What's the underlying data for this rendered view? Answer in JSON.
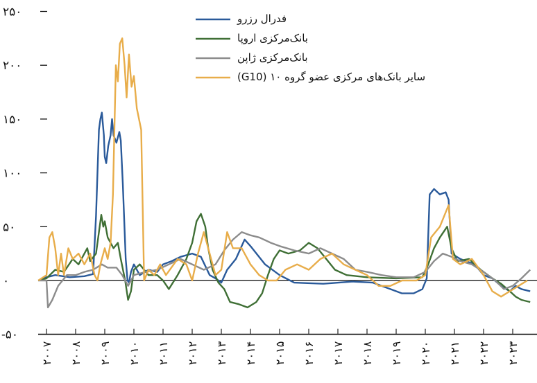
{
  "chart_data": {
    "type": "line",
    "title": "",
    "xlabel": "",
    "ylabel": "",
    "ylim": [
      -50,
      250
    ],
    "xlim": [
      2006.72,
      2023.9
    ],
    "yticks": [
      {
        "value": 250,
        "label": "۲۵۰"
      },
      {
        "value": 200,
        "label": "۲۰۰"
      },
      {
        "value": 150,
        "label": "۱۵۰"
      },
      {
        "value": 100,
        "label": "۱۰۰"
      },
      {
        "value": 50,
        "label": "۵۰"
      },
      {
        "value": 0,
        "label": "۰"
      },
      {
        "value": -50,
        "label": "-۵۰"
      }
    ],
    "xticks": [
      {
        "value": 2007,
        "label": "۲۰۰۷"
      },
      {
        "value": 2008,
        "label": "۲۰۰۸"
      },
      {
        "value": 2009,
        "label": "۲۰۰۹"
      },
      {
        "value": 2010,
        "label": "۲۰۱۰"
      },
      {
        "value": 2011,
        "label": "۲۰۱۱"
      },
      {
        "value": 2012,
        "label": "۲۰۱۲"
      },
      {
        "value": 2013,
        "label": "۲۰۱۳"
      },
      {
        "value": 2014,
        "label": "۲۰۱۴"
      },
      {
        "value": 2015,
        "label": "۲۰۱۵"
      },
      {
        "value": 2016,
        "label": "۲۰۱۶"
      },
      {
        "value": 2017,
        "label": "۲۰۱۷"
      },
      {
        "value": 2018,
        "label": "۲۰۱۸"
      },
      {
        "value": 2019,
        "label": "۲۰۱۹"
      },
      {
        "value": 2020,
        "label": "۲۰۲۰"
      },
      {
        "value": 2021,
        "label": "۲۰۲۱"
      },
      {
        "value": 2022,
        "label": "۲۰۲۲"
      },
      {
        "value": 2023,
        "label": "۲۰۲۳"
      }
    ],
    "grid": false,
    "legend_position": "top-center",
    "series": [
      {
        "name": "فدرال رزرو",
        "color": "#2a5a9a",
        "points": [
          [
            2006.72,
            0
          ],
          [
            2007.0,
            3
          ],
          [
            2007.3,
            5
          ],
          [
            2007.8,
            3
          ],
          [
            2008.3,
            4
          ],
          [
            2008.6,
            6
          ],
          [
            2008.7,
            60
          ],
          [
            2008.8,
            140
          ],
          [
            2008.85,
            150
          ],
          [
            2008.9,
            156
          ],
          [
            2008.97,
            135
          ],
          [
            2009.0,
            115
          ],
          [
            2009.05,
            109
          ],
          [
            2009.12,
            125
          ],
          [
            2009.2,
            135
          ],
          [
            2009.25,
            150
          ],
          [
            2009.3,
            135
          ],
          [
            2009.4,
            128
          ],
          [
            2009.5,
            138
          ],
          [
            2009.55,
            130
          ],
          [
            2009.62,
            90
          ],
          [
            2009.72,
            20
          ],
          [
            2009.78,
            0
          ],
          [
            2009.83,
            -2
          ],
          [
            2009.9,
            8
          ],
          [
            2010.0,
            15
          ],
          [
            2010.2,
            5
          ],
          [
            2010.5,
            10
          ],
          [
            2010.8,
            8
          ],
          [
            2011.0,
            15
          ],
          [
            2011.3,
            18
          ],
          [
            2011.6,
            22
          ],
          [
            2012.0,
            25
          ],
          [
            2012.3,
            22
          ],
          [
            2012.6,
            5
          ],
          [
            2012.8,
            2
          ],
          [
            2013.0,
            -2
          ],
          [
            2013.2,
            10
          ],
          [
            2013.5,
            20
          ],
          [
            2013.8,
            38
          ],
          [
            2014.0,
            32
          ],
          [
            2014.5,
            15
          ],
          [
            2015.0,
            5
          ],
          [
            2015.5,
            -2
          ],
          [
            2016.5,
            -3
          ],
          [
            2017.5,
            -1
          ],
          [
            2018.2,
            -2
          ],
          [
            2018.8,
            -8
          ],
          [
            2019.2,
            -12
          ],
          [
            2019.6,
            -12
          ],
          [
            2019.9,
            -8
          ],
          [
            2020.05,
            2
          ],
          [
            2020.15,
            80
          ],
          [
            2020.3,
            85
          ],
          [
            2020.5,
            80
          ],
          [
            2020.7,
            82
          ],
          [
            2020.8,
            75
          ],
          [
            2020.9,
            25
          ],
          [
            2021.2,
            20
          ],
          [
            2021.7,
            15
          ],
          [
            2022.0,
            5
          ],
          [
            2022.3,
            2
          ],
          [
            2022.6,
            -5
          ],
          [
            2022.9,
            -10
          ],
          [
            2023.1,
            -5
          ],
          [
            2023.3,
            -8
          ],
          [
            2023.6,
            -10
          ]
        ]
      },
      {
        "name": "بانک‌مرکزی اروپا",
        "color": "#3f6f35",
        "points": [
          [
            2006.72,
            0
          ],
          [
            2007.0,
            2
          ],
          [
            2007.3,
            10
          ],
          [
            2007.6,
            8
          ],
          [
            2007.9,
            20
          ],
          [
            2008.1,
            15
          ],
          [
            2008.4,
            30
          ],
          [
            2008.5,
            18
          ],
          [
            2008.7,
            25
          ],
          [
            2008.8,
            45
          ],
          [
            2008.88,
            61
          ],
          [
            2008.95,
            50
          ],
          [
            2009.0,
            55
          ],
          [
            2009.1,
            40
          ],
          [
            2009.3,
            30
          ],
          [
            2009.45,
            35
          ],
          [
            2009.55,
            20
          ],
          [
            2009.7,
            0
          ],
          [
            2009.8,
            -18
          ],
          [
            2009.9,
            -10
          ],
          [
            2010.0,
            10
          ],
          [
            2010.2,
            15
          ],
          [
            2010.5,
            5
          ],
          [
            2010.8,
            5
          ],
          [
            2011.0,
            0
          ],
          [
            2011.2,
            -8
          ],
          [
            2011.5,
            5
          ],
          [
            2011.8,
            20
          ],
          [
            2012.0,
            35
          ],
          [
            2012.15,
            55
          ],
          [
            2012.3,
            62
          ],
          [
            2012.45,
            50
          ],
          [
            2012.55,
            30
          ],
          [
            2012.7,
            10
          ],
          [
            2012.9,
            -2
          ],
          [
            2013.1,
            -8
          ],
          [
            2013.3,
            -20
          ],
          [
            2013.6,
            -22
          ],
          [
            2013.9,
            -25
          ],
          [
            2014.2,
            -20
          ],
          [
            2014.4,
            -12
          ],
          [
            2014.6,
            5
          ],
          [
            2014.8,
            20
          ],
          [
            2015.0,
            28
          ],
          [
            2015.3,
            25
          ],
          [
            2015.7,
            28
          ],
          [
            2016.0,
            35
          ],
          [
            2016.3,
            30
          ],
          [
            2016.6,
            20
          ],
          [
            2016.9,
            10
          ],
          [
            2017.3,
            5
          ],
          [
            2018.0,
            3
          ],
          [
            2019.0,
            2
          ],
          [
            2019.9,
            3
          ],
          [
            2020.1,
            15
          ],
          [
            2020.3,
            30
          ],
          [
            2020.5,
            40
          ],
          [
            2020.75,
            50
          ],
          [
            2020.9,
            30
          ],
          [
            2021.1,
            18
          ],
          [
            2021.5,
            20
          ],
          [
            2021.9,
            10
          ],
          [
            2022.3,
            2
          ],
          [
            2022.6,
            -3
          ],
          [
            2022.9,
            -10
          ],
          [
            2023.1,
            -15
          ],
          [
            2023.3,
            -18
          ],
          [
            2023.6,
            -20
          ]
        ]
      },
      {
        "name": "بانک‌مرکزی ژاپن",
        "color": "#8c8c8c",
        "points": [
          [
            2006.72,
            0
          ],
          [
            2007.0,
            0
          ],
          [
            2007.05,
            -25
          ],
          [
            2007.2,
            -18
          ],
          [
            2007.4,
            -5
          ],
          [
            2007.7,
            5
          ],
          [
            2008.0,
            5
          ],
          [
            2008.3,
            8
          ],
          [
            2008.6,
            10
          ],
          [
            2008.9,
            15
          ],
          [
            2009.1,
            12
          ],
          [
            2009.4,
            12
          ],
          [
            2009.6,
            5
          ],
          [
            2009.8,
            -5
          ],
          [
            2010.0,
            5
          ],
          [
            2010.4,
            8
          ],
          [
            2010.8,
            10
          ],
          [
            2011.2,
            15
          ],
          [
            2011.6,
            20
          ],
          [
            2012.0,
            15
          ],
          [
            2012.4,
            10
          ],
          [
            2012.8,
            15
          ],
          [
            2013.1,
            28
          ],
          [
            2013.4,
            38
          ],
          [
            2013.7,
            45
          ],
          [
            2014.0,
            42
          ],
          [
            2014.3,
            40
          ],
          [
            2014.7,
            35
          ],
          [
            2015.0,
            32
          ],
          [
            2015.5,
            28
          ],
          [
            2016.0,
            25
          ],
          [
            2016.4,
            30
          ],
          [
            2016.8,
            25
          ],
          [
            2017.2,
            20
          ],
          [
            2017.6,
            10
          ],
          [
            2018.0,
            8
          ],
          [
            2018.5,
            5
          ],
          [
            2019.0,
            3
          ],
          [
            2019.6,
            3
          ],
          [
            2020.0,
            8
          ],
          [
            2020.3,
            18
          ],
          [
            2020.6,
            25
          ],
          [
            2020.9,
            22
          ],
          [
            2021.2,
            18
          ],
          [
            2021.6,
            15
          ],
          [
            2022.0,
            8
          ],
          [
            2022.4,
            0
          ],
          [
            2022.7,
            -8
          ],
          [
            2023.0,
            -5
          ],
          [
            2023.3,
            2
          ],
          [
            2023.6,
            10
          ]
        ]
      },
      {
        "name": "سایر بانک‌های مرکزی عضو گروه ۱۰ (G10)",
        "color": "#e8ad4a",
        "points": [
          [
            2006.72,
            0
          ],
          [
            2007.0,
            5
          ],
          [
            2007.1,
            40
          ],
          [
            2007.2,
            45
          ],
          [
            2007.3,
            30
          ],
          [
            2007.4,
            5
          ],
          [
            2007.5,
            25
          ],
          [
            2007.6,
            5
          ],
          [
            2007.75,
            30
          ],
          [
            2007.9,
            20
          ],
          [
            2008.1,
            25
          ],
          [
            2008.3,
            15
          ],
          [
            2008.5,
            25
          ],
          [
            2008.65,
            5
          ],
          [
            2008.75,
            0
          ],
          [
            2008.85,
            15
          ],
          [
            2009.0,
            30
          ],
          [
            2009.1,
            20
          ],
          [
            2009.2,
            35
          ],
          [
            2009.28,
            80
          ],
          [
            2009.38,
            200
          ],
          [
            2009.45,
            185
          ],
          [
            2009.52,
            220
          ],
          [
            2009.6,
            225
          ],
          [
            2009.68,
            200
          ],
          [
            2009.75,
            170
          ],
          [
            2009.83,
            210
          ],
          [
            2009.92,
            180
          ],
          [
            2010.0,
            190
          ],
          [
            2010.1,
            160
          ],
          [
            2010.25,
            140
          ],
          [
            2010.35,
            0
          ],
          [
            2010.5,
            10
          ],
          [
            2010.7,
            5
          ],
          [
            2010.9,
            15
          ],
          [
            2011.1,
            5
          ],
          [
            2011.5,
            20
          ],
          [
            2011.8,
            15
          ],
          [
            2012.0,
            0
          ],
          [
            2012.2,
            25
          ],
          [
            2012.4,
            45
          ],
          [
            2012.6,
            25
          ],
          [
            2012.8,
            5
          ],
          [
            2013.0,
            10
          ],
          [
            2013.2,
            45
          ],
          [
            2013.4,
            30
          ],
          [
            2013.7,
            30
          ],
          [
            2014.0,
            15
          ],
          [
            2014.3,
            5
          ],
          [
            2014.6,
            0
          ],
          [
            2014.9,
            0
          ],
          [
            2015.2,
            10
          ],
          [
            2015.6,
            15
          ],
          [
            2016.0,
            10
          ],
          [
            2016.4,
            20
          ],
          [
            2016.8,
            25
          ],
          [
            2017.2,
            15
          ],
          [
            2017.6,
            10
          ],
          [
            2018.0,
            5
          ],
          [
            2018.4,
            -5
          ],
          [
            2018.8,
            -5
          ],
          [
            2019.2,
            0
          ],
          [
            2019.7,
            0
          ],
          [
            2020.0,
            5
          ],
          [
            2020.2,
            40
          ],
          [
            2020.5,
            50
          ],
          [
            2020.8,
            70
          ],
          [
            2020.95,
            20
          ],
          [
            2021.2,
            15
          ],
          [
            2021.6,
            20
          ],
          [
            2022.0,
            5
          ],
          [
            2022.3,
            -10
          ],
          [
            2022.6,
            -15
          ],
          [
            2022.9,
            -10
          ],
          [
            2023.2,
            -5
          ],
          [
            2023.5,
            0
          ]
        ]
      }
    ]
  }
}
